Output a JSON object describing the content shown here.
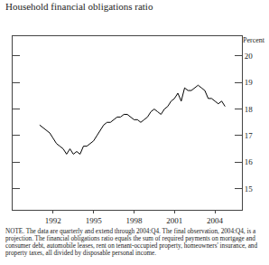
{
  "chart_data": {
    "type": "line",
    "title": "Household financial obligations ratio",
    "ylabel": "Percent",
    "note": "NOTE. The data are quarterly and extend through 2004:Q4. The final observation, 2004:Q4, is a projection. The financial obligations ratio equals the sum of required payments on mortgage and consumer debt, automobile leases, rent on tenant-occupied property, homeowners' insurance, and property taxes, all divided by disposable personal income.",
    "x": [
      1991,
      1991.25,
      1991.5,
      1991.75,
      1992,
      1992.25,
      1992.5,
      1992.75,
      1993,
      1993.25,
      1993.5,
      1993.75,
      1994,
      1994.25,
      1994.5,
      1994.75,
      1995,
      1995.25,
      1995.5,
      1995.75,
      1996,
      1996.25,
      1996.5,
      1996.75,
      1997,
      1997.25,
      1997.5,
      1997.75,
      1998,
      1998.25,
      1998.5,
      1998.75,
      1999,
      1999.25,
      1999.5,
      1999.75,
      2000,
      2000.25,
      2000.5,
      2000.75,
      2001,
      2001.25,
      2001.5,
      2001.75,
      2002,
      2002.25,
      2002.5,
      2002.75,
      2003,
      2003.25,
      2003.5,
      2003.75,
      2004,
      2004.25,
      2004.5,
      2004.75
    ],
    "values": [
      17.4,
      17.3,
      17.2,
      17.1,
      16.9,
      16.7,
      16.6,
      16.5,
      16.3,
      16.5,
      16.3,
      16.4,
      16.3,
      16.6,
      16.6,
      16.7,
      16.8,
      17.0,
      17.2,
      17.4,
      17.5,
      17.5,
      17.6,
      17.7,
      17.7,
      17.8,
      17.8,
      17.7,
      17.6,
      17.6,
      17.5,
      17.6,
      17.7,
      17.9,
      18.0,
      17.9,
      17.8,
      18.0,
      18.1,
      18.3,
      18.4,
      18.6,
      18.3,
      18.8,
      18.7,
      18.7,
      18.8,
      18.9,
      18.8,
      18.7,
      18.4,
      18.4,
      18.3,
      18.2,
      18.3,
      18.1
    ],
    "color": "#000000",
    "xlim": [
      1989,
      2006
    ],
    "xticks": [
      1992,
      1995,
      1998,
      2001,
      2004
    ],
    "ylim": [
      14.2,
      20.75
    ],
    "yticks": [
      15,
      16,
      17,
      18,
      19,
      20
    ],
    "grid": false
  }
}
